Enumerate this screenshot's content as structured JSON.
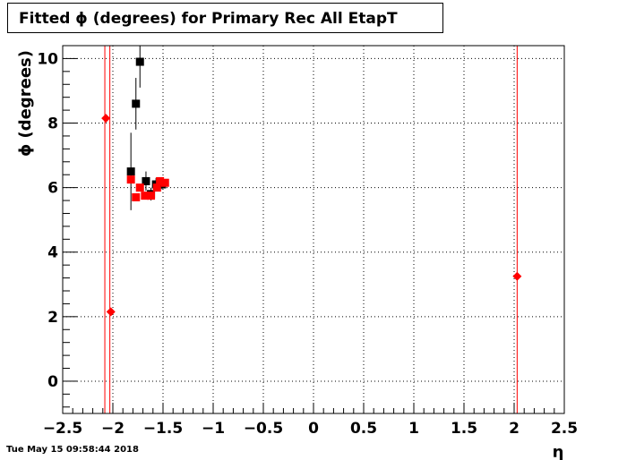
{
  "title": "Fitted ϕ (degrees) for Primary Rec All EtapT",
  "timestamp": "Tue May 15 09:58:44 2018",
  "chart_data": {
    "type": "scatter",
    "title": "Fitted ϕ (degrees) for Primary Rec All EtapT",
    "xlabel": "η",
    "ylabel": "ϕ (degrees)",
    "xlim": [
      -2.5,
      2.5
    ],
    "ylim": [
      -1.0,
      10.4
    ],
    "grid": true,
    "x_ticks": [
      -2.5,
      -2,
      -1.5,
      -1,
      -0.5,
      0,
      0.5,
      1,
      1.5,
      2,
      2.5
    ],
    "x_tick_labels": [
      "−2.5",
      "−2",
      "−1.5",
      "−1",
      "−0.5",
      "0",
      "0.5",
      "1",
      "1.5",
      "2",
      "2.5"
    ],
    "y_ticks": [
      0,
      2,
      4,
      6,
      8,
      10
    ],
    "y_tick_labels": [
      "0",
      "2",
      "4",
      "6",
      "8",
      "10"
    ],
    "vertical_lines": [
      -2.08,
      -2.03,
      2.03
    ],
    "vertical_line_color": "#ff0000",
    "series": [
      {
        "color": "#000000",
        "marker": "square",
        "points": [
          {
            "x": -1.82,
            "y": 6.5,
            "ylo": 5.3,
            "yhi": 7.7
          },
          {
            "x": -1.77,
            "y": 8.6,
            "ylo": 7.8,
            "yhi": 9.4
          },
          {
            "x": -1.73,
            "y": 9.9,
            "ylo": 9.1,
            "yhi": 10.4
          },
          {
            "x": -1.67,
            "y": 6.2,
            "ylo": 5.9,
            "yhi": 6.5
          },
          {
            "x": -1.62,
            "y": 5.8,
            "ylo": 5.6,
            "yhi": 6.0
          },
          {
            "x": -1.57,
            "y": 6.1,
            "ylo": 5.9,
            "yhi": 6.3
          },
          {
            "x": -1.51,
            "y": 6.1,
            "ylo": 5.95,
            "yhi": 6.25
          }
        ]
      },
      {
        "color": "#ff0000",
        "marker": "square",
        "points": [
          {
            "x": -1.82,
            "y": 6.25
          },
          {
            "x": -1.77,
            "y": 5.7
          },
          {
            "x": -1.73,
            "y": 6.0
          },
          {
            "x": -1.68,
            "y": 5.75
          },
          {
            "x": -1.62,
            "y": 5.75
          },
          {
            "x": -1.56,
            "y": 6.0
          },
          {
            "x": -1.53,
            "y": 6.2
          },
          {
            "x": -1.48,
            "y": 6.15
          }
        ]
      },
      {
        "color": "#ff0000",
        "marker": "diamond",
        "points": [
          {
            "x": -2.07,
            "y": 8.15
          },
          {
            "x": -2.02,
            "y": 2.15
          },
          {
            "x": 2.03,
            "y": 3.25
          }
        ]
      }
    ]
  }
}
